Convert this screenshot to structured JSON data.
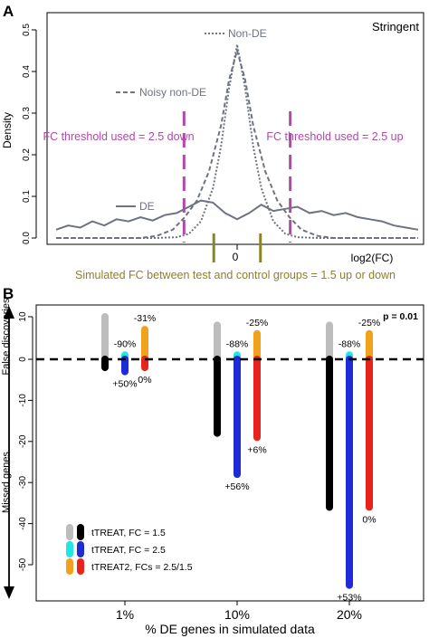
{
  "colors": {
    "curve_gray": "#6e7380",
    "threshold_magenta": "#b04aa8",
    "sim_olive": "#8c8326",
    "gray_bar": "#bdbdbd",
    "black_bar": "#000000",
    "cyan_bar": "#22e6e6",
    "blue_bar": "#1f2bd6",
    "orange_bar": "#f2a11c",
    "red_bar": "#e8231b"
  },
  "chart_data": [
    {
      "panel": "A",
      "type": "line",
      "corner_label": "Stringent",
      "xlabel": "log2(FC)",
      "ylabel": "Density",
      "x_tick_labels": [
        "0"
      ],
      "y_ticks": [
        0.0,
        0.1,
        0.2,
        0.3,
        0.4,
        0.5
      ],
      "ylim": [
        -0.01,
        0.55
      ],
      "xlim": [
        -4.5,
        4.5
      ],
      "threshold_label_left": "FC threshold used = 2.5 down",
      "threshold_label_right": "FC threshold used = 2.5 up",
      "threshold_x": [
        -1.32,
        1.32
      ],
      "simulated_label": "Simulated FC between test and control groups = 1.5 up or down",
      "simulated_x": [
        -0.58,
        0.58
      ],
      "series": [
        {
          "name": "Non-DE",
          "style": "dotted",
          "x": [
            -4.5,
            -2,
            -1.5,
            -1.2,
            -0.9,
            -0.6,
            -0.4,
            -0.2,
            0,
            0.2,
            0.4,
            0.6,
            0.9,
            1.2,
            1.5,
            2,
            4.5
          ],
          "y": [
            0,
            0,
            0.002,
            0.01,
            0.04,
            0.12,
            0.22,
            0.36,
            0.465,
            0.36,
            0.22,
            0.12,
            0.04,
            0.01,
            0.002,
            0,
            0
          ]
        },
        {
          "name": "Noisy non-DE",
          "style": "dashed",
          "x": [
            -4.5,
            -2.4,
            -2,
            -1.6,
            -1.3,
            -1.0,
            -0.7,
            -0.4,
            -0.2,
            0,
            0.2,
            0.4,
            0.7,
            1.0,
            1.3,
            1.6,
            2,
            2.4,
            4.5
          ],
          "y": [
            0,
            0,
            0.005,
            0.02,
            0.05,
            0.09,
            0.16,
            0.27,
            0.38,
            0.45,
            0.38,
            0.27,
            0.16,
            0.09,
            0.05,
            0.02,
            0.005,
            0,
            0
          ]
        },
        {
          "name": "DE",
          "style": "solid",
          "x": [
            -4.5,
            -4.2,
            -3.9,
            -3.6,
            -3.3,
            -3.0,
            -2.7,
            -2.4,
            -2.1,
            -1.8,
            -1.5,
            -1.2,
            -0.9,
            -0.6,
            -0.3,
            0,
            0.3,
            0.6,
            0.9,
            1.2,
            1.5,
            1.8,
            2.1,
            2.4,
            2.7,
            3.0,
            3.3,
            3.6,
            3.9,
            4.2,
            4.5
          ],
          "y": [
            0.02,
            0.03,
            0.025,
            0.04,
            0.03,
            0.045,
            0.04,
            0.05,
            0.042,
            0.055,
            0.06,
            0.075,
            0.09,
            0.085,
            0.06,
            0.045,
            0.06,
            0.08,
            0.065,
            0.07,
            0.075,
            0.06,
            0.065,
            0.055,
            0.06,
            0.05,
            0.045,
            0.04,
            0.03,
            0.025,
            0.02
          ]
        }
      ]
    },
    {
      "panel": "B",
      "type": "bar",
      "xlabel": "% DE genes in simulated data",
      "ylabel_top": "False discoveries",
      "ylabel_bottom": "Missed genes",
      "p_value_label": "p = 0.01",
      "categories": [
        "1%",
        "10%",
        "20%"
      ],
      "y_ticks": [
        10,
        0,
        -10,
        -20,
        -30,
        -40,
        -50
      ],
      "ylim": [
        -58,
        13
      ],
      "series": [
        {
          "name": "tTREAT, FC = 1.5",
          "colors": [
            "#bdbdbd",
            "#000000"
          ],
          "false_discoveries": [
            10,
            8,
            8
          ],
          "missed_genes": [
            -2,
            -18,
            -36
          ]
        },
        {
          "name": "tTREAT, FC = 2.5",
          "colors": [
            "#22e6e6",
            "#1f2bd6"
          ],
          "false_discoveries": [
            1,
            1,
            1
          ],
          "missed_genes": [
            -3,
            -28,
            -55
          ]
        },
        {
          "name": "tTREAT2, FCs = 2.5/1.5",
          "colors": [
            "#f2a11c",
            "#e8231b"
          ],
          "false_discoveries": [
            7,
            6,
            6
          ],
          "missed_genes": [
            -2,
            -19,
            -36
          ]
        }
      ],
      "annotations": {
        "fd_tTREAT_FC25": [
          "-90%",
          "-88%",
          "-88%"
        ],
        "fd_tTREAT2": [
          "-31%",
          "-25%",
          "-25%"
        ],
        "mg_tTREAT_FC25": [
          "+50%",
          "+56%",
          "+53%"
        ],
        "mg_tTREAT2": [
          "0%",
          "+6%",
          "0%"
        ]
      }
    }
  ],
  "panel_letters": [
    "A",
    "B"
  ]
}
